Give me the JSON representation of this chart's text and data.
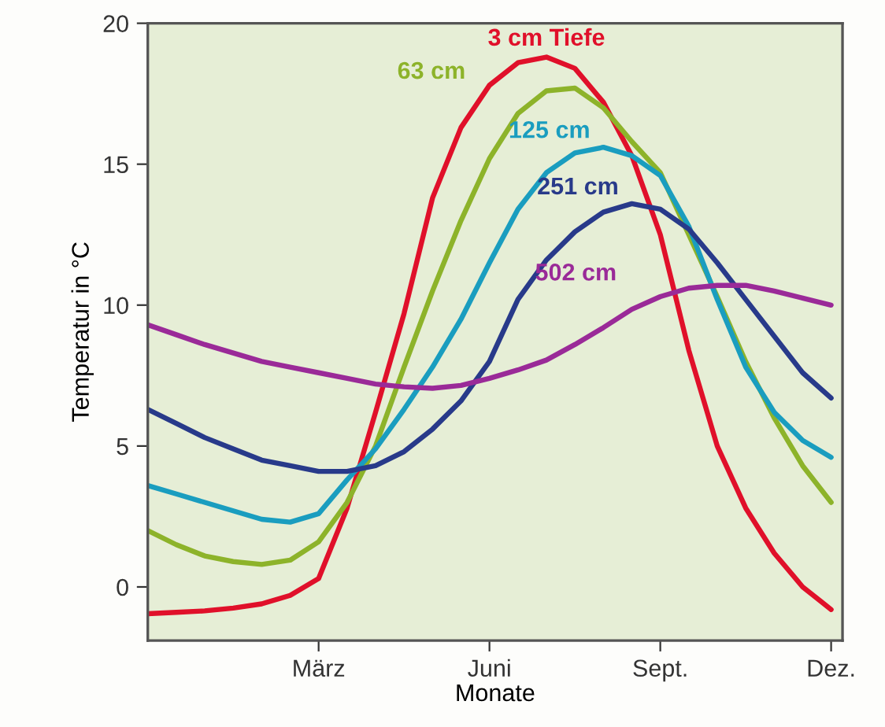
{
  "chart_data": {
    "type": "line",
    "xlabel": "Monate",
    "ylabel": "Temperatur in °C",
    "categories": [
      null,
      null,
      null,
      null,
      null,
      null,
      "März",
      null,
      null,
      null,
      null,
      null,
      "Juni",
      null,
      null,
      null,
      null,
      null,
      "Sept.",
      null,
      null,
      null,
      null,
      null,
      "Dez."
    ],
    "ylim": [
      -1.9,
      20
    ],
    "yticks": [
      0,
      5,
      10,
      15,
      20
    ],
    "grid": false,
    "legend": false,
    "marker": "none",
    "line_style": "solid",
    "series": [
      {
        "name": "3 cm Tiefe",
        "color": "#e0102a",
        "values": [
          -0.95,
          -0.9,
          -0.85,
          -0.75,
          -0.6,
          -0.3,
          0.3,
          2.8,
          6.2,
          9.7,
          13.8,
          16.3,
          17.8,
          18.6,
          18.8,
          18.4,
          17.2,
          15.3,
          12.5,
          8.4,
          5.0,
          2.8,
          1.2,
          0,
          -0.8
        ]
      },
      {
        "name": "63 cm",
        "color": "#8db32a",
        "values": [
          2.0,
          1.5,
          1.1,
          0.9,
          0.8,
          0.95,
          1.6,
          3.0,
          5.0,
          7.8,
          10.5,
          13,
          15.2,
          16.8,
          17.6,
          17.7,
          17.0,
          15.8,
          14.7,
          12.5,
          10.3,
          8,
          6,
          4.3,
          3
        ]
      },
      {
        "name": "125 cm",
        "color": "#1a9dbf",
        "values": [
          3.6,
          3.3,
          3.0,
          2.7,
          2.4,
          2.3,
          2.6,
          3.8,
          4.9,
          6.3,
          7.8,
          9.5,
          11.5,
          13.4,
          14.7,
          15.4,
          15.6,
          15.3,
          14.6,
          12.8,
          10.2,
          7.8,
          6.2,
          5.2,
          4.6
        ]
      },
      {
        "name": "251 cm",
        "color": "#283a8a",
        "values": [
          6.3,
          5.8,
          5.3,
          4.9,
          4.5,
          4.3,
          4.1,
          4.1,
          4.3,
          4.8,
          5.6,
          6.6,
          8.0,
          10.2,
          11.6,
          12.6,
          13.3,
          13.6,
          13.4,
          12.7,
          11.5,
          10.2,
          8.9,
          7.6,
          6.7
        ]
      },
      {
        "name": "502 cm",
        "color": "#9a2a98",
        "values": [
          9.3,
          8.95,
          8.6,
          8.3,
          8.0,
          7.8,
          7.6,
          7.4,
          7.2,
          7.1,
          7.05,
          7.15,
          7.4,
          7.7,
          8.05,
          8.6,
          9.2,
          9.85,
          10.3,
          10.6,
          10.7,
          10.7,
          10.5,
          10.25,
          10.0
        ]
      }
    ]
  }
}
